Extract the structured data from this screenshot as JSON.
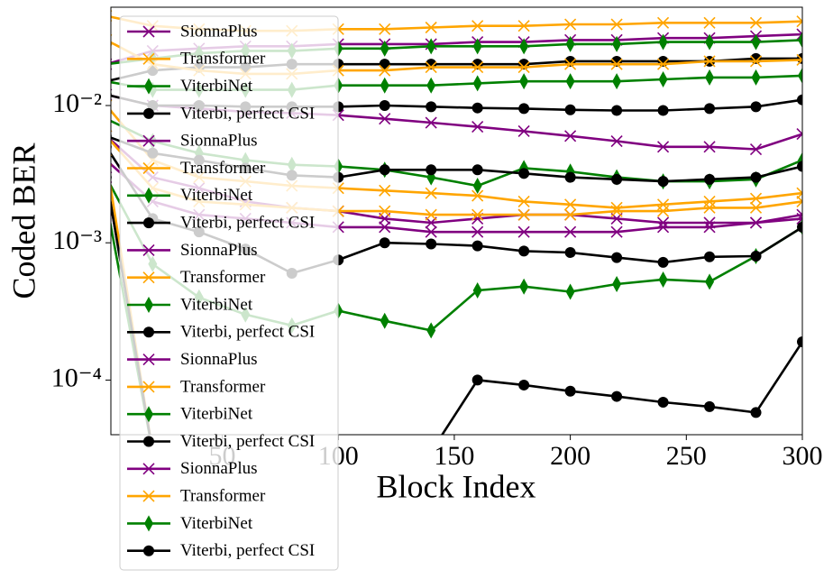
{
  "chart_data": {
    "type": "line",
    "xlabel": "Block Index",
    "ylabel": "Coded BER",
    "x": [
      0,
      20,
      40,
      60,
      80,
      100,
      120,
      140,
      160,
      180,
      200,
      220,
      240,
      260,
      280,
      300
    ],
    "xlim": [
      2,
      300
    ],
    "ylim": [
      4e-05,
      0.052
    ],
    "log_y": true,
    "legend": "upper left",
    "xticks": [
      50,
      100,
      150,
      200,
      250,
      300
    ],
    "yticks": [
      {
        "value": 0.0001,
        "label": "10⁻⁴"
      },
      {
        "value": 0.001,
        "label": "10⁻³"
      },
      {
        "value": 0.01,
        "label": "10⁻²"
      }
    ],
    "series": [
      {
        "name": "SionnaPlus",
        "color": "#800080",
        "marker": "x",
        "values": [
          0.02,
          0.025,
          0.026,
          0.027,
          0.027,
          0.028,
          0.028,
          0.028,
          0.029,
          0.029,
          0.03,
          0.03,
          0.031,
          0.031,
          0.032,
          0.033
        ]
      },
      {
        "name": "Transformer",
        "color": "#ffa500",
        "marker": "x",
        "values": [
          0.045,
          0.038,
          0.036,
          0.035,
          0.035,
          0.036,
          0.036,
          0.037,
          0.038,
          0.038,
          0.039,
          0.039,
          0.04,
          0.04,
          0.04,
          0.041
        ]
      },
      {
        "name": "ViterbiNet",
        "color": "#008000",
        "marker": "diamond",
        "values": [
          0.02,
          0.022,
          0.024,
          0.025,
          0.025,
          0.026,
          0.026,
          0.027,
          0.027,
          0.027,
          0.028,
          0.028,
          0.029,
          0.029,
          0.029,
          0.03
        ]
      },
      {
        "name": "Viterbi, perfect CSI",
        "color": "#000000",
        "marker": "circle",
        "values": [
          0.015,
          0.018,
          0.019,
          0.019,
          0.02,
          0.02,
          0.02,
          0.02,
          0.02,
          0.02,
          0.021,
          0.021,
          0.021,
          0.021,
          0.022,
          0.022
        ]
      },
      {
        "name": "SionnaPlus",
        "color": "#800080",
        "marker": "x",
        "values": [
          0.012,
          0.01,
          0.0095,
          0.009,
          0.0088,
          0.0085,
          0.008,
          0.0075,
          0.007,
          0.0065,
          0.006,
          0.0055,
          0.005,
          0.005,
          0.0048,
          0.0062
        ]
      },
      {
        "name": "Transformer",
        "color": "#ffa500",
        "marker": "x",
        "values": [
          0.03,
          0.02,
          0.018,
          0.017,
          0.017,
          0.018,
          0.018,
          0.019,
          0.019,
          0.019,
          0.02,
          0.02,
          0.02,
          0.021,
          0.021,
          0.0215
        ]
      },
      {
        "name": "ViterbiNet",
        "color": "#008000",
        "marker": "diamond",
        "values": [
          0.015,
          0.013,
          0.013,
          0.013,
          0.013,
          0.014,
          0.014,
          0.014,
          0.0145,
          0.015,
          0.015,
          0.015,
          0.0155,
          0.016,
          0.016,
          0.0165
        ]
      },
      {
        "name": "Viterbi, perfect CSI",
        "color": "#000000",
        "marker": "circle",
        "values": [
          0.012,
          0.01,
          0.01,
          0.0098,
          0.0098,
          0.0098,
          0.01,
          0.0098,
          0.0096,
          0.0095,
          0.0093,
          0.0092,
          0.0092,
          0.0095,
          0.0098,
          0.011
        ]
      },
      {
        "name": "SionnaPlus",
        "color": "#800080",
        "marker": "x",
        "values": [
          0.006,
          0.003,
          0.0025,
          0.002,
          0.0018,
          0.0017,
          0.0015,
          0.0014,
          0.0015,
          0.0016,
          0.0016,
          0.0015,
          0.0014,
          0.0014,
          0.0014,
          0.0016
        ]
      },
      {
        "name": "Transformer",
        "color": "#ffa500",
        "marker": "x",
        "values": [
          0.01,
          0.004,
          0.003,
          0.0028,
          0.0026,
          0.0025,
          0.0024,
          0.0023,
          0.0022,
          0.002,
          0.0019,
          0.0018,
          0.0019,
          0.002,
          0.0021,
          0.0023
        ]
      },
      {
        "name": "ViterbiNet",
        "color": "#008000",
        "marker": "diamond",
        "values": [
          0.008,
          0.0055,
          0.0045,
          0.004,
          0.0037,
          0.0036,
          0.0034,
          0.003,
          0.0026,
          0.0035,
          0.0033,
          0.003,
          0.0028,
          0.0028,
          0.0029,
          0.004
        ]
      },
      {
        "name": "Viterbi, perfect CSI",
        "color": "#000000",
        "marker": "circle",
        "values": [
          0.006,
          0.0045,
          0.004,
          0.0035,
          0.0031,
          0.003,
          0.0034,
          0.0034,
          0.0034,
          0.0032,
          0.003,
          0.0029,
          0.0028,
          0.0029,
          0.003,
          0.0036
        ]
      },
      {
        "name": "SionnaPlus",
        "color": "#800080",
        "marker": "x",
        "values": [
          0.004,
          0.002,
          0.0016,
          0.0015,
          0.0014,
          0.0013,
          0.0013,
          0.0012,
          0.0012,
          0.0012,
          0.0012,
          0.0012,
          0.0013,
          0.0013,
          0.0014,
          0.0015
        ]
      },
      {
        "name": "Transformer",
        "color": "#ffa500",
        "marker": "x",
        "values": [
          0.006,
          0.0025,
          0.002,
          0.0019,
          0.0018,
          0.0017,
          0.0017,
          0.0016,
          0.0016,
          0.0016,
          0.0016,
          0.0017,
          0.0017,
          0.0018,
          0.0018,
          0.002
        ]
      },
      {
        "name": "ViterbiNet",
        "color": "#008000",
        "marker": "diamond",
        "values": [
          0.003,
          0.0007,
          0.0004,
          0.0003,
          0.00025,
          0.00032,
          0.00027,
          0.00023,
          0.00045,
          0.00048,
          0.00044,
          0.0005,
          0.00054,
          0.00052,
          0.0008,
          0.0013
        ]
      },
      {
        "name": "Viterbi, perfect CSI",
        "color": "#000000",
        "marker": "circle",
        "values": [
          0.005,
          0.0015,
          0.0012,
          0.0009,
          0.0006,
          0.00075,
          0.001,
          0.00098,
          0.00095,
          0.00087,
          0.00085,
          0.00078,
          0.00072,
          0.00079,
          0.0008,
          0.0013
        ]
      },
      {
        "name": "SionnaPlus",
        "color": "#800080",
        "marker": "x",
        "values": [
          0.003,
          3e-05,
          3e-05,
          3e-05,
          3e-05,
          3e-05,
          3e-05,
          3e-05,
          3e-05,
          3e-05,
          3e-05,
          3e-05,
          3e-05,
          3e-05,
          3e-05,
          3e-05
        ]
      },
      {
        "name": "Transformer",
        "color": "#ffa500",
        "marker": "x",
        "values": [
          0.004,
          3e-05,
          3e-05,
          3e-05,
          3e-05,
          3e-05,
          3e-05,
          3e-05,
          3e-05,
          3e-05,
          3e-05,
          3e-05,
          3e-05,
          3e-05,
          3e-05,
          3e-05
        ]
      },
      {
        "name": "ViterbiNet",
        "color": "#008000",
        "marker": "diamond",
        "values": [
          0.002,
          3e-05,
          3e-05,
          3e-05,
          3e-05,
          3e-05,
          3e-05,
          3e-05,
          3e-05,
          3e-05,
          3e-05,
          3e-05,
          3e-05,
          3e-05,
          3e-05,
          3e-05
        ]
      },
      {
        "name": "Viterbi, perfect CSI",
        "color": "#000000",
        "marker": "circle",
        "values": [
          0.003,
          3e-05,
          3e-05,
          3e-05,
          3e-05,
          3e-05,
          3e-05,
          3e-05,
          0.0001,
          9.2e-05,
          8.3e-05,
          7.6e-05,
          6.9e-05,
          6.4e-05,
          5.8e-05,
          0.00019
        ]
      }
    ]
  }
}
